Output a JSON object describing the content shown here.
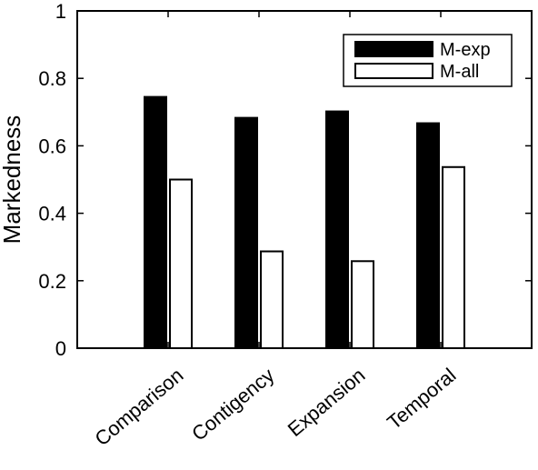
{
  "chart_data": {
    "type": "bar",
    "title": "",
    "xlabel": "",
    "ylabel": "Markedness",
    "ylim": [
      0,
      1
    ],
    "yticks": [
      0,
      0.2,
      0.4,
      0.6,
      0.8,
      1
    ],
    "ytick_labels": [
      "0",
      "0.2",
      "0.4",
      "0.6",
      "0.8",
      "1"
    ],
    "grid": false,
    "legend_position": "top-right",
    "categories": [
      "Comparison",
      "Contigency",
      "Expansion",
      "Temporal"
    ],
    "series": [
      {
        "name": "M-exp",
        "values": [
          0.745,
          0.683,
          0.702,
          0.667
        ],
        "color": "#000000"
      },
      {
        "name": "M-all",
        "values": [
          0.5,
          0.287,
          0.258,
          0.537
        ],
        "color": "#ffffff"
      }
    ]
  }
}
